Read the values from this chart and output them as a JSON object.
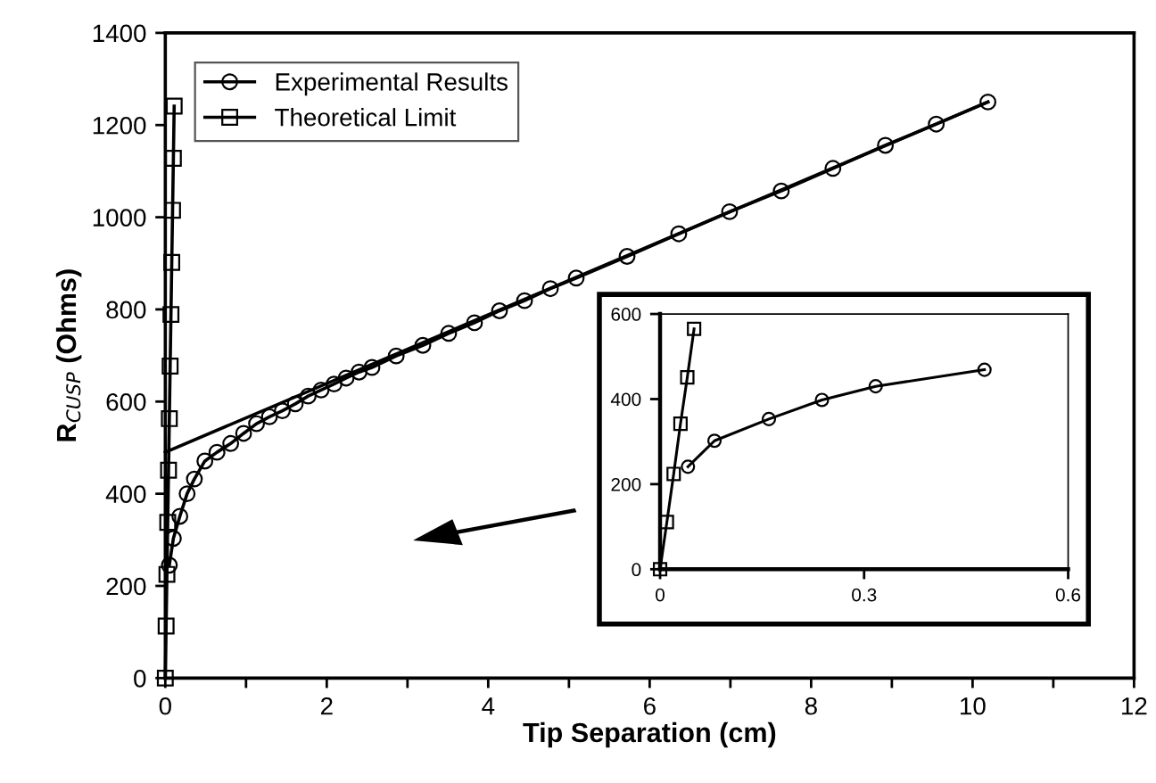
{
  "chart_data": [
    {
      "type": "line",
      "xlabel": "Tip Separation (cm)",
      "ylabel": "R$_{CUSP}$ (Ohms)",
      "xlim": [
        0,
        12
      ],
      "ylim": [
        0,
        1400
      ],
      "xticks": [
        0,
        {
          "value": 1,
          "label": null
        },
        2,
        {
          "value": 3,
          "label": null
        },
        4,
        {
          "value": 5,
          "label": null
        },
        6,
        {
          "value": 7,
          "label": null
        },
        8,
        {
          "value": 9,
          "label": null
        },
        10,
        {
          "value": 11,
          "label": null
        },
        12
      ],
      "yticks": [
        0,
        200,
        400,
        600,
        800,
        1000,
        1200,
        1400
      ],
      "grid": false,
      "legend": "top left",
      "series": [
        {
          "name": "Experimental Results",
          "color": "#000000",
          "marker": "circle",
          "x": [
            0.05,
            0.1,
            0.18,
            0.27,
            0.36,
            0.49,
            0.64,
            0.81,
            0.97,
            1.13,
            1.29,
            1.45,
            1.61,
            1.77,
            1.93,
            2.09,
            2.24,
            2.4,
            2.56,
            2.86,
            3.19,
            3.51,
            3.83,
            4.14,
            4.45,
            4.77,
            5.09,
            5.72,
            6.36,
            6.99,
            7.63,
            8.27,
            8.92,
            9.55,
            10.19
          ],
          "values": [
            245,
            303,
            351,
            400,
            432,
            471,
            490,
            509,
            531,
            552,
            567,
            580,
            595,
            612,
            625,
            638,
            651,
            664,
            674,
            699,
            722,
            748,
            771,
            797,
            819,
            845,
            868,
            915,
            964,
            1012,
            1057,
            1106,
            1156,
            1202,
            1250
          ]
        },
        {
          "name": "Theoretical Limit",
          "color": "#000000",
          "marker": "square",
          "x": [
            0,
            0.01,
            0.02,
            0.03,
            0.04,
            0.05,
            0.06,
            0.07,
            0.08,
            0.09,
            0.1,
            0.11
          ],
          "values": [
            0,
            113,
            225,
            338,
            451,
            563,
            677,
            789,
            902,
            1015,
            1128,
            1241
          ]
        },
        {
          "color": "#000000",
          "marker": "none",
          "x": [
            0,
            10.19
          ],
          "values": [
            490,
            1250
          ]
        }
      ]
    },
    {
      "type": "line",
      "xlim": [
        0,
        0.6
      ],
      "ylim": [
        0,
        600
      ],
      "xticks": [
        0,
        0.3,
        0.6
      ],
      "yticks": [
        0,
        200,
        400,
        600
      ],
      "grid": false,
      "legend": false,
      "series": [
        {
          "color": "#000000",
          "marker": "circle",
          "x": [
            0.041,
            0.08,
            0.16,
            0.238,
            0.317,
            0.477
          ],
          "values": [
            241,
            302,
            353,
            398,
            430,
            469
          ]
        },
        {
          "color": "#000000",
          "marker": "square",
          "x": [
            0,
            0.01,
            0.02,
            0.03,
            0.04,
            0.05
          ],
          "values": [
            0,
            111,
            224,
            342,
            451,
            565
          ]
        }
      ]
    }
  ]
}
